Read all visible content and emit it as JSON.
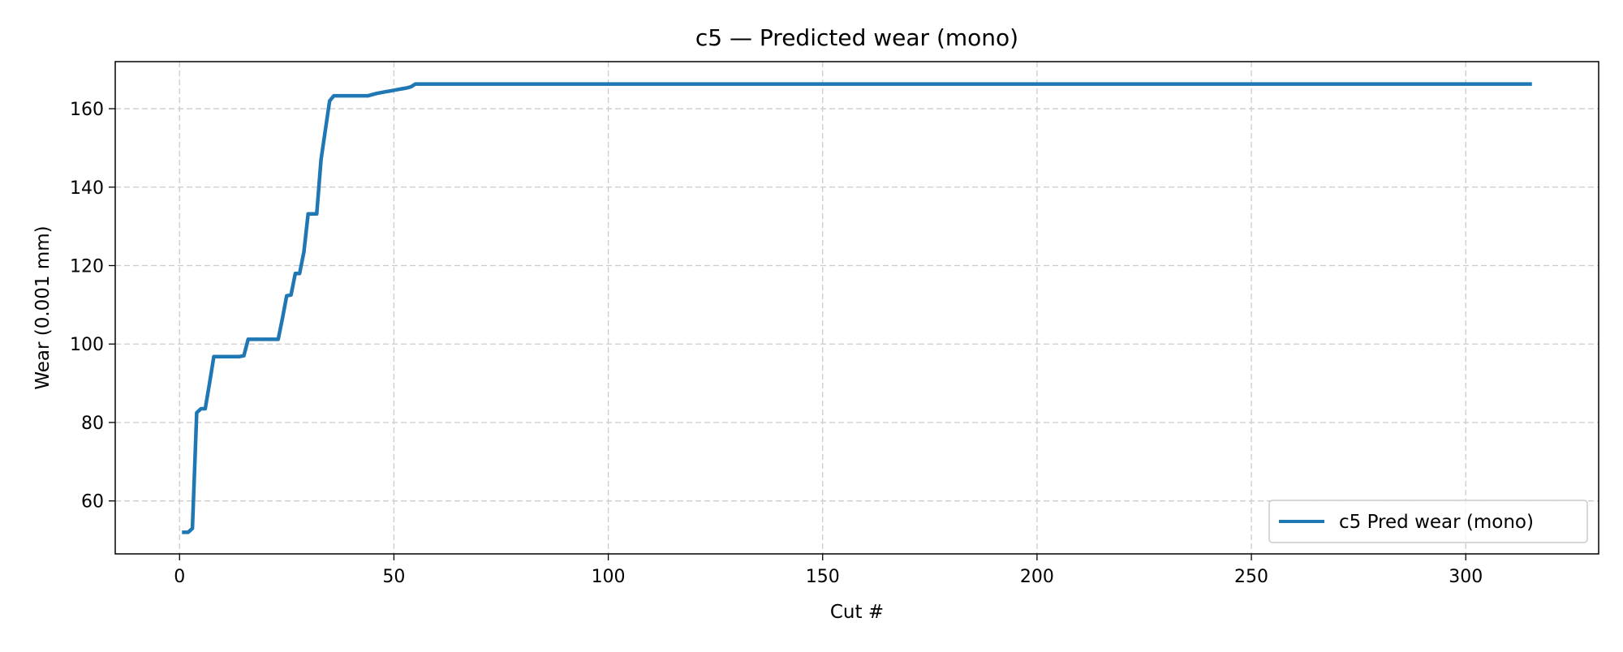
{
  "chart_data": {
    "type": "line",
    "title": "c5 — Predicted wear (mono)",
    "xlabel": "Cut #",
    "ylabel": "Wear (0.001 mm)",
    "xlim": [
      -15,
      331
    ],
    "ylim": [
      46.5,
      172
    ],
    "x_ticks": [
      0,
      50,
      100,
      150,
      200,
      250,
      300
    ],
    "y_ticks": [
      60,
      80,
      100,
      120,
      140,
      160
    ],
    "grid": true,
    "grid_style": "dashed",
    "legend_position": "lower-right",
    "series": [
      {
        "name": "c5 Pred wear (mono)",
        "color": "#1f77b4",
        "x": [
          1,
          2,
          3,
          4,
          5,
          6,
          7,
          8,
          9,
          10,
          11,
          12,
          13,
          14,
          15,
          16,
          17,
          18,
          19,
          20,
          21,
          22,
          23,
          24,
          25,
          26,
          27,
          28,
          29,
          30,
          31,
          32,
          33,
          34,
          35,
          36,
          37,
          38,
          39,
          40,
          41,
          42,
          43,
          44,
          45,
          46,
          47,
          48,
          49,
          50,
          51,
          52,
          53,
          54,
          55,
          56,
          100,
          150,
          200,
          250,
          300,
          315
        ],
        "y": [
          52.0,
          52.0,
          53.0,
          82.5,
          83.5,
          83.5,
          90.0,
          96.8,
          96.8,
          96.8,
          96.8,
          96.8,
          96.8,
          96.8,
          97.0,
          101.2,
          101.2,
          101.2,
          101.2,
          101.2,
          101.2,
          101.2,
          101.2,
          106.5,
          112.3,
          112.5,
          118.0,
          118.0,
          123.5,
          133.2,
          133.2,
          133.2,
          147.0,
          154.5,
          162.0,
          163.3,
          163.3,
          163.3,
          163.3,
          163.3,
          163.3,
          163.3,
          163.3,
          163.3,
          163.6,
          163.9,
          164.1,
          164.3,
          164.5,
          164.7,
          164.9,
          165.1,
          165.3,
          165.6,
          166.3,
          166.3,
          166.3,
          166.3,
          166.3,
          166.3,
          166.3,
          166.3
        ]
      }
    ]
  }
}
